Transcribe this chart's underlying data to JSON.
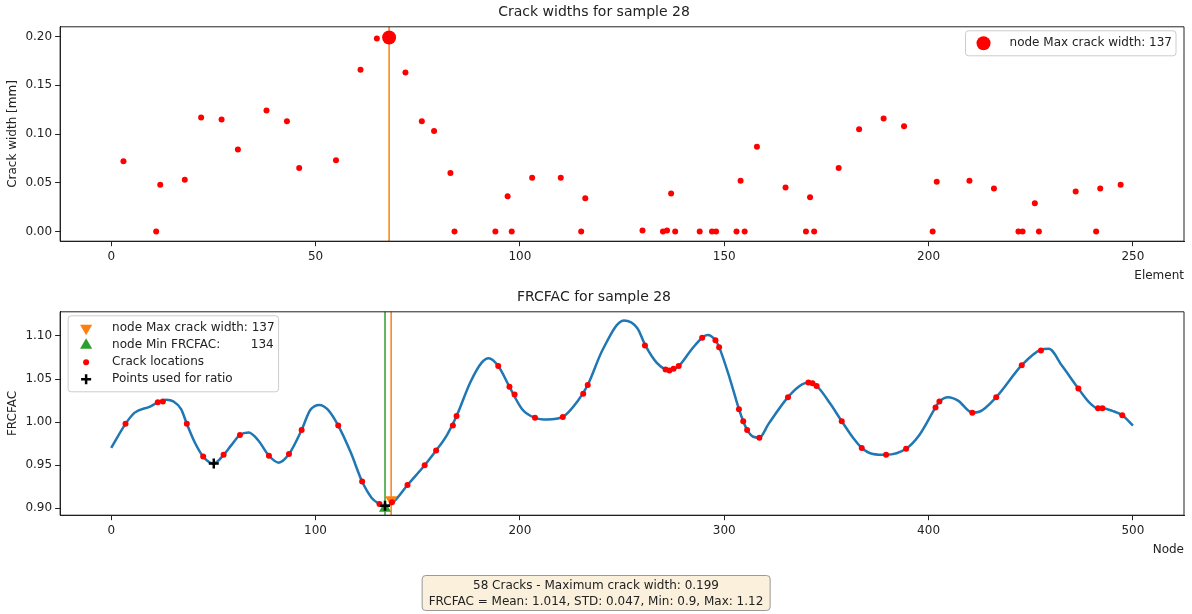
{
  "chart_data": [
    {
      "type": "scatter",
      "title": "Crack widths for sample 28",
      "xlabel": "Element",
      "ylabel": "Crack width [mm]",
      "xlim": [
        -12.5,
        262.5
      ],
      "ylim": [
        -0.01,
        0.21
      ],
      "xticks": [
        0,
        50,
        100,
        150,
        200,
        250
      ],
      "yticks": [
        {
          "value": 0,
          "label": "0.00"
        },
        {
          "value": 0.05,
          "label": "0.05"
        },
        {
          "value": 0.1,
          "label": "0.10"
        },
        {
          "value": 0.15,
          "label": "0.15"
        },
        {
          "value": 0.2,
          "label": "0.20"
        }
      ],
      "grid": false,
      "legend": "top right",
      "ref_lines": [
        {
          "axis": "x",
          "value": 68,
          "color": "#ff7f0e"
        }
      ],
      "series": [
        {
          "color": "#ff0000",
          "marker": "circle",
          "x": [
            3,
            11,
            12,
            18,
            22,
            27,
            31,
            38,
            43,
            46,
            55,
            61,
            65,
            72,
            76,
            79,
            83,
            84,
            94,
            97,
            98,
            103,
            110,
            115,
            116,
            130,
            135,
            136,
            137,
            138,
            144,
            147,
            148,
            153,
            154,
            155,
            158,
            165,
            170,
            171,
            172,
            178,
            183,
            189,
            194,
            201,
            202,
            210,
            216,
            222,
            223,
            226,
            227,
            236,
            241,
            242,
            247
          ],
          "values": [
            0.072,
            0,
            0.048,
            0.053,
            0.117,
            0.115,
            0.084,
            0.124,
            0.113,
            0.065,
            0.073,
            0.166,
            0.198,
            0.163,
            0.113,
            0.103,
            0.06,
            0,
            0,
            0.036,
            0,
            0.055,
            0.055,
            0,
            0.034,
            0.001,
            0,
            0.001,
            0.039,
            0,
            0,
            0,
            0,
            0,
            0.052,
            0,
            0.087,
            0.045,
            0,
            0.035,
            0,
            0.065,
            0.105,
            0.116,
            0.108,
            0,
            0.051,
            0.052,
            0.044,
            0,
            0,
            0.029,
            0,
            0.041,
            0,
            0.044,
            0.048
          ]
        },
        {
          "name": "node Max crack width: 137",
          "color": "#ff0000",
          "marker": "circle",
          "x": [
            68
          ],
          "values": [
            0.199
          ]
        }
      ]
    },
    {
      "type": "line",
      "title": "FRCFAC for sample 28",
      "xlabel": "Node",
      "ylabel": "FRCFAC",
      "xlim": [
        -25,
        525
      ],
      "ylim": [
        0.892,
        1.128
      ],
      "xticks": [
        0,
        100,
        200,
        300,
        400,
        500
      ],
      "yticks": [
        {
          "value": 0.9,
          "label": "0.90"
        },
        {
          "value": 0.95,
          "label": "0.95"
        },
        {
          "value": 1,
          "label": "1.00"
        },
        {
          "value": 1.05,
          "label": "1.05"
        },
        {
          "value": 1.1,
          "label": "1.10"
        }
      ],
      "grid": false,
      "legend": "top left",
      "ref_lines": [
        {
          "axis": "x",
          "value": 134,
          "color": "#2ca02c"
        },
        {
          "axis": "x",
          "value": 137,
          "color": "#ff7f0e"
        }
      ],
      "annotations": [
        "58 Cracks - Maximum crack width: 0.199",
        "FRCFAC = Mean: 1.014, STD: 0.047, Min: 0.9, Max: 1.12"
      ],
      "series": [
        {
          "color": "#1f77b4",
          "marker": "none",
          "x": [
            0,
            7,
            11.5,
            19,
            22.8,
            27,
            30.4,
            34.2,
            37,
            40.8,
            45,
            48.3,
            50.2,
            55,
            58.7,
            63,
            67.2,
            71.9,
            77.2,
            81.9,
            87,
            93.2,
            97.4,
            101.9,
            105.8,
            111.1,
            117.2,
            122.8,
            127.5,
            131.3,
            133.8,
            138,
            145,
            153.4,
            159,
            164.3,
            169,
            175.7,
            181.3,
            184.7,
            189.4,
            194.9,
            201.1,
            207.4,
            213.4,
            221,
            228.5,
            233.2,
            240.5,
            250.9,
            257.5,
            261.4,
            266.9,
            271.3,
            273.2,
            277.7,
            283.9,
            289.2,
            291.9,
            295.7,
            297.5,
            302.8,
            307.2,
            309.3,
            311.2,
            314.2,
            317.2,
            321.7,
            331.2,
            336.9,
            341.2,
            345.2,
            352,
            357.5,
            363.3,
            367.3,
            372.8,
            379.2,
            389,
            395.5,
            403.4,
            405.3,
            409.6,
            414.4,
            421.4,
            424.8,
            433.1,
            445.6,
            455,
            458.8,
            465.4,
            473.3,
            478.6,
            482.9,
            485.1,
            489.9,
            494.8,
            500
          ],
          "values": [
            0.97,
            0.998,
            1.011,
            1.018,
            1.023,
            1.026,
            1.024,
            1.015,
            0.998,
            0.977,
            0.96,
            0.953,
            0.952,
            0.962,
            0.973,
            0.985,
            0.988,
            0.979,
            0.961,
            0.953,
            0.963,
            0.991,
            1.014,
            1.02,
            1.015,
            0.996,
            0.965,
            0.931,
            0.912,
            0.905,
            0.902,
            0.907,
            0.927,
            0.95,
            0.967,
            0.985,
            1.007,
            1.046,
            1.069,
            1.074,
            1.065,
            1.041,
            1.015,
            1.005,
            1.003,
            1.006,
            1.025,
            1.043,
            1.084,
            1.118,
            1.109,
            1.089,
            1.069,
            1.061,
            1.06,
            1.065,
            1.084,
            1.098,
            1.101,
            1.095,
            1.087,
            1.05,
            1.015,
            1.001,
            0.991,
            0.983,
            0.982,
            0.998,
            1.029,
            1.042,
            1.046,
            1.042,
            1.021,
            1.001,
            0.981,
            0.97,
            0.963,
            0.962,
            0.969,
            0.985,
            1.017,
            1.024,
            1.029,
            1.025,
            1.011,
            1.012,
            1.029,
            1.066,
            1.084,
            1.085,
            1.065,
            1.039,
            1.023,
            1.016,
            1.016,
            1.013,
            1.008,
            0.996
          ]
        },
        {
          "type": "scatter",
          "name": "node Max crack width: 137",
          "color": "#ff7f0e",
          "marker": "triangle_down",
          "x": [
            137
          ],
          "values": [
            0.91
          ]
        },
        {
          "type": "scatter",
          "name": "node Min FRCFAC:        134",
          "color": "#2ca02c",
          "marker": "triangle",
          "x": [
            134
          ],
          "values": [
            0.9
          ]
        },
        {
          "type": "scatter",
          "name": "Crack locations",
          "color": "#ff0000",
          "marker": "circle",
          "x": [
            7,
            22.8,
            25.3,
            37,
            45,
            55,
            63,
            77.2,
            87,
            93.2,
            111.1,
            122.8,
            131.3,
            137.4,
            145,
            153.4,
            159,
            167.2,
            169,
            189.4,
            194.9,
            197.4,
            207.4,
            221,
            231,
            233.2,
            261.2,
            271.3,
            273.2,
            275.2,
            277.7,
            289.2,
            295.7,
            297.5,
            307.2,
            309.3,
            311.2,
            317.2,
            331.2,
            341.2,
            343.2,
            345.2,
            357.5,
            367.3,
            379.2,
            389,
            403.4,
            405.3,
            421.4,
            433.1,
            445.6,
            455,
            473.3,
            482.9,
            485.1,
            494.8
          ],
          "values": [
            0.998,
            1.023,
            1.024,
            0.998,
            0.96,
            0.962,
            0.985,
            0.961,
            0.963,
            0.991,
            0.996,
            0.931,
            0.905,
            0.907,
            0.927,
            0.95,
            0.967,
            0.996,
            1.007,
            1.065,
            1.041,
            1.032,
            1.005,
            1.006,
            1.033,
            1.043,
            1.089,
            1.061,
            1.06,
            1.062,
            1.065,
            1.098,
            1.095,
            1.087,
            1.015,
            1.001,
            0.991,
            0.982,
            1.029,
            1.046,
            1.045,
            1.042,
            1.001,
            0.97,
            0.962,
            0.969,
            1.017,
            1.024,
            1.011,
            1.029,
            1.066,
            1.083,
            1.039,
            1.016,
            1.016,
            1.008
          ]
        },
        {
          "type": "scatter",
          "name": "Points used for ratio",
          "color": "#000000",
          "marker": "cross",
          "x": [
            50.2,
            134
          ],
          "values": [
            0.952,
            0.903
          ]
        }
      ]
    }
  ]
}
